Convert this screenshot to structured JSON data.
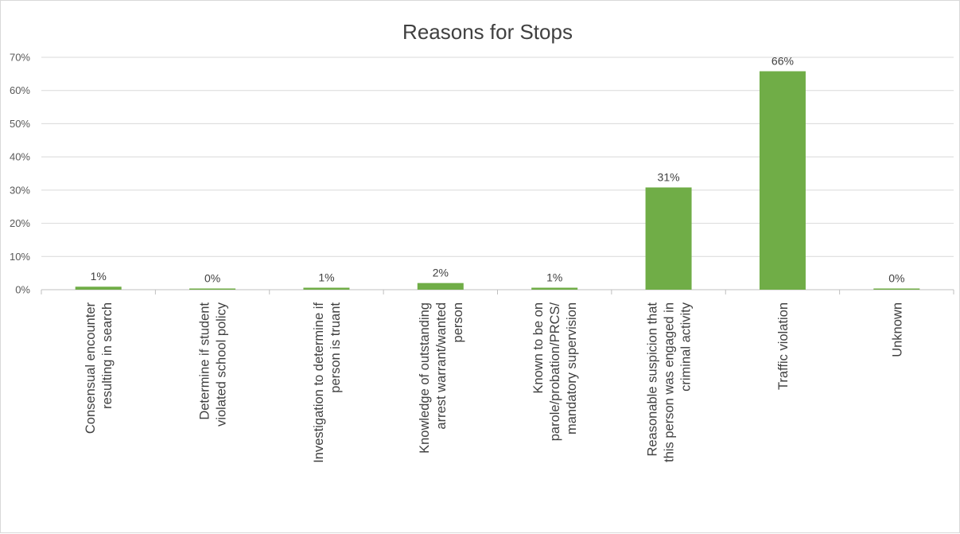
{
  "chart_data": {
    "type": "bar",
    "title": "Reasons for Stops",
    "xlabel": "",
    "ylabel": "",
    "ylim": [
      0,
      70
    ],
    "y_ticks": [
      "0%",
      "10%",
      "20%",
      "30%",
      "40%",
      "50%",
      "60%",
      "70%"
    ],
    "y_tick_values": [
      0,
      10,
      20,
      30,
      40,
      50,
      60,
      70
    ],
    "grid": true,
    "legend": "none",
    "bar_color": "#70ad47",
    "categories": [
      [
        "Consensual encounter",
        "resulting in search"
      ],
      [
        "Determine if student",
        "violated school policy"
      ],
      [
        "Investigation to determine if",
        "person is truant"
      ],
      [
        "Knowledge of outstanding",
        "arrest warrant/wanted",
        "person"
      ],
      [
        "Known to be on",
        "parole/probation/PRCS/",
        "mandatory supervision"
      ],
      [
        "Reasonable suspicion that",
        "this person was engaged in",
        "criminal activity"
      ],
      [
        "Traffic violation"
      ],
      [
        "Unknown"
      ]
    ],
    "values": [
      0.9,
      0.1,
      0.6,
      2.0,
      0.6,
      30.8,
      65.8,
      0.2
    ],
    "data_labels": [
      "1%",
      "0%",
      "1%",
      "2%",
      "1%",
      "31%",
      "66%",
      "0%"
    ]
  }
}
